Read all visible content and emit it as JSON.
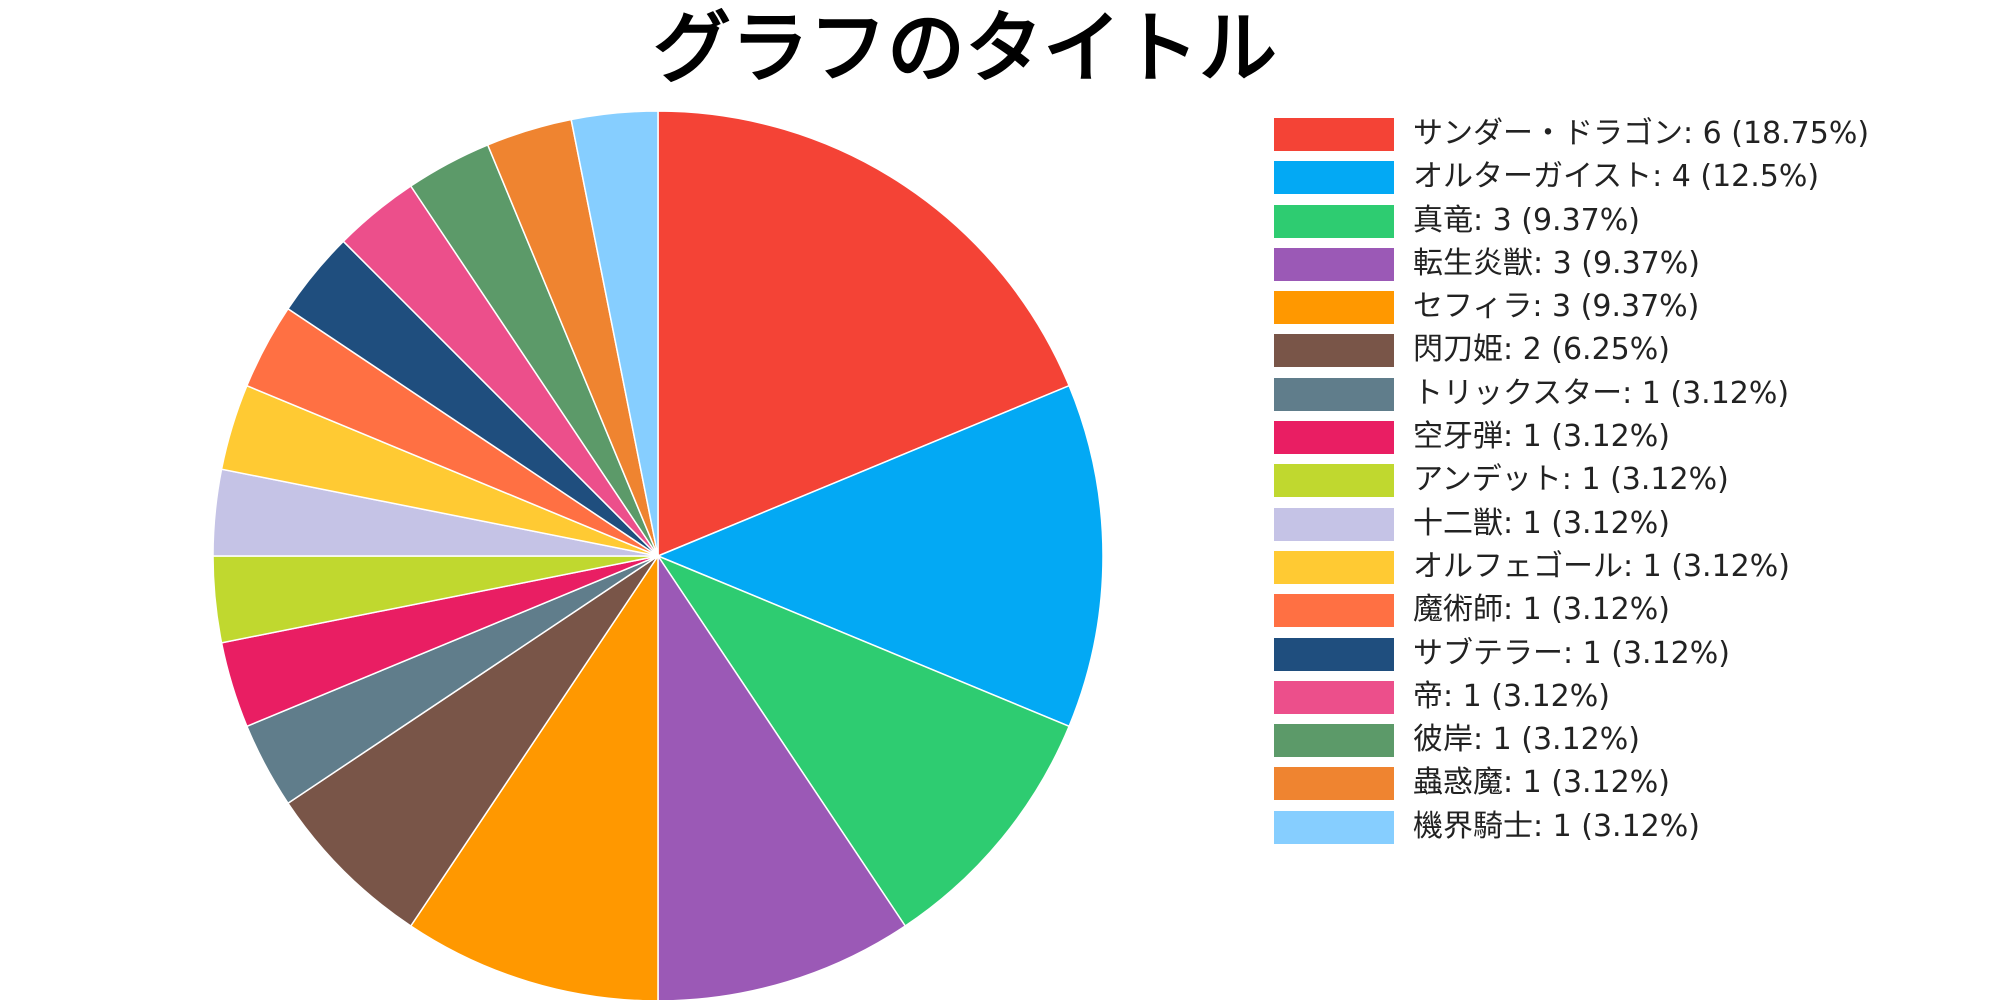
{
  "chart_data": {
    "type": "pie",
    "title": "グラフのタイトル",
    "legend_position": "right",
    "slices": [
      {
        "label": "サンダー・ドラゴン: 6 (18.75%)",
        "value": 6,
        "color": "#F44336"
      },
      {
        "label": "オルターガイスト: 4 (12.5%)",
        "value": 4,
        "color": "#03A9F4"
      },
      {
        "label": "真竜: 3 (9.37%)",
        "value": 3,
        "color": "#2ECC71"
      },
      {
        "label": "転生炎獣: 3 (9.37%)",
        "value": 3,
        "color": "#9B59B6"
      },
      {
        "label": "セフィラ: 3 (9.37%)",
        "value": 3,
        "color": "#FF9800"
      },
      {
        "label": "閃刀姫: 2 (6.25%)",
        "value": 2,
        "color": "#795548"
      },
      {
        "label": "トリックスター: 1 (3.12%)",
        "value": 1,
        "color": "#607D8B"
      },
      {
        "label": "空牙弾: 1 (3.12%)",
        "value": 1,
        "color": "#E91E63"
      },
      {
        "label": "アンデット: 1 (3.12%)",
        "value": 1,
        "color": "#C0D82F"
      },
      {
        "label": "十二獣: 1 (3.12%)",
        "value": 1,
        "color": "#C5C3E6"
      },
      {
        "label": "オルフェゴール: 1 (3.12%)",
        "value": 1,
        "color": "#FFCA33"
      },
      {
        "label": "魔術師: 1 (3.12%)",
        "value": 1,
        "color": "#FF7043"
      },
      {
        "label": "サブテラー: 1 (3.12%)",
        "value": 1,
        "color": "#1F4E7E"
      },
      {
        "label": "帝: 1 (3.12%)",
        "value": 1,
        "color": "#EC4F8B"
      },
      {
        "label": "彼岸: 1 (3.12%)",
        "value": 1,
        "color": "#5C9A69"
      },
      {
        "label": "蟲惑魔: 1 (3.12%)",
        "value": 1,
        "color": "#EF8430"
      },
      {
        "label": "機界騎士: 1 (3.12%)",
        "value": 1,
        "color": "#86CEFF"
      }
    ]
  }
}
